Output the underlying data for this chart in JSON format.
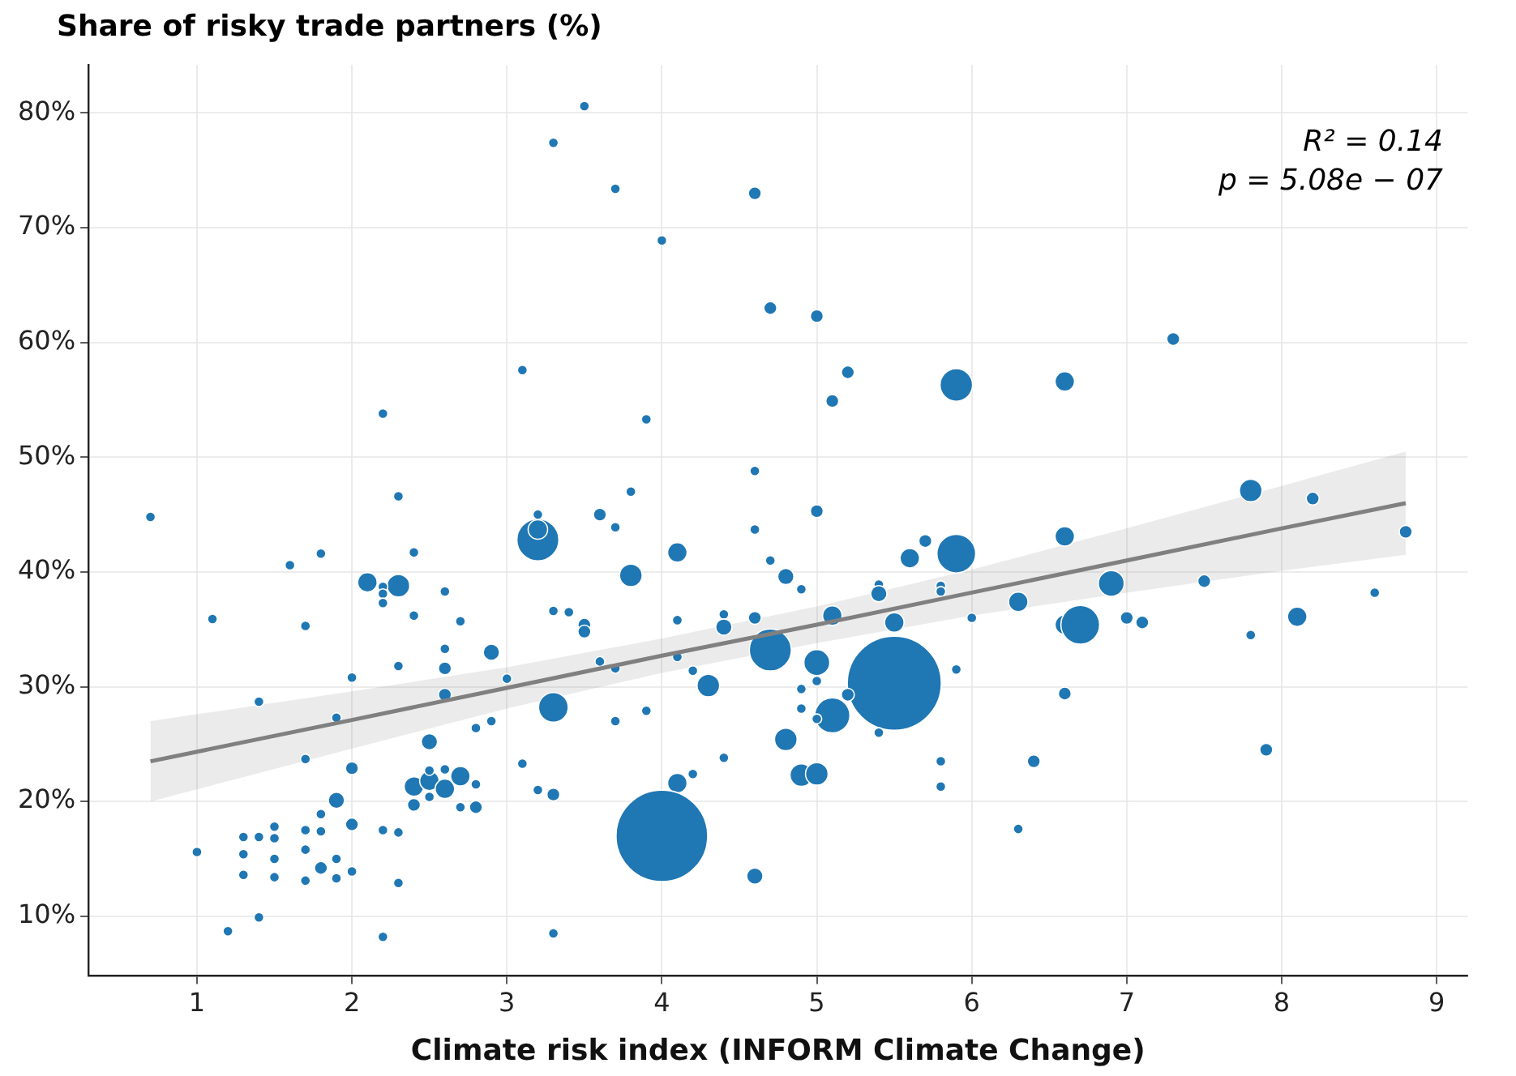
{
  "chart_data": {
    "type": "bubble",
    "ylabel": "Share of risky trade partners (%)",
    "xlabel": "Climate risk index (INFORM Climate Change)",
    "annotations": [
      "R² = 0.14",
      "p = 5.08e − 07"
    ],
    "xlim": [
      0.3,
      9.2
    ],
    "ylim": [
      4.8,
      84.2
    ],
    "xticks": [
      1,
      2,
      3,
      4,
      5,
      6,
      7,
      8,
      9
    ],
    "yticks": [
      {
        "value": 10,
        "label": "10%"
      },
      {
        "value": 20,
        "label": "20%"
      },
      {
        "value": 30,
        "label": "30%"
      },
      {
        "value": 40,
        "label": "40%"
      },
      {
        "value": 50,
        "label": "50%"
      },
      {
        "value": 60,
        "label": "60%"
      },
      {
        "value": 70,
        "label": "70%"
      },
      {
        "value": 80,
        "label": "80%"
      }
    ],
    "grid": true,
    "legend": false,
    "series": [
      {
        "color": "#1f77b4",
        "x": [
          0.7,
          3.2,
          3.2,
          3.2,
          1.6,
          1.8,
          2.4,
          2.1,
          2.3,
          2.2,
          2.2,
          2.2,
          2.6,
          2.4,
          2.7,
          1.1,
          1.7,
          3.3,
          2.6,
          2.9,
          2.3,
          2.6,
          2.0,
          3.0,
          3.3,
          1.4,
          1.9,
          2.6,
          2.8,
          2.9,
          2.5,
          1.7,
          2.0,
          3.1,
          2.4,
          2.5,
          2.6,
          2.7,
          2.5,
          2.6,
          2.8,
          2.5,
          2.4,
          2.7,
          2.8,
          3.2,
          3.3,
          1.9,
          1.8,
          2.0,
          1.5,
          1.4,
          1.3,
          1.7,
          1.8,
          2.2,
          2.3,
          1.5,
          1.0,
          1.3,
          1.5,
          1.7,
          1.9,
          1.8,
          2.0,
          1.3,
          1.5,
          1.7,
          1.9,
          2.3,
          1.4,
          1.2,
          2.2,
          3.3,
          2.3,
          3.3,
          3.1,
          2.2,
          3.5,
          3.7,
          4.6,
          4.0,
          4.7,
          5.0,
          5.2,
          5.9,
          5.1,
          3.9,
          4.6,
          3.8,
          5.0,
          3.6,
          3.7,
          4.6,
          4.1,
          3.8,
          4.7,
          4.8,
          4.9,
          5.7,
          5.6,
          5.9,
          5.4,
          5.4,
          5.8,
          5.8,
          6.0,
          5.5,
          5.1,
          4.6,
          4.4,
          4.4,
          4.1,
          3.4,
          3.5,
          3.5,
          4.1,
          3.6,
          3.7,
          4.2,
          4.7,
          5.0,
          5.0,
          4.9,
          4.9,
          4.3,
          5.5,
          5.1,
          5.2,
          5.0,
          3.7,
          3.9,
          5.4,
          4.8,
          4.4,
          4.2,
          4.1,
          4.9,
          5.0,
          5.8,
          5.8,
          5.9,
          4.0,
          4.6,
          6.6,
          6.3,
          6.9,
          6.6,
          6.7,
          7.0,
          7.1,
          7.5,
          7.8,
          8.1,
          8.6,
          8.8,
          6.6,
          6.4,
          6.3,
          7.9,
          6.6,
          7.3,
          7.8,
          8.2
        ],
        "values": [
          44.8,
          42.8,
          45.0,
          43.7,
          40.6,
          41.6,
          41.7,
          39.1,
          38.8,
          38.7,
          38.1,
          37.3,
          38.3,
          36.2,
          35.7,
          35.9,
          35.3,
          36.6,
          33.3,
          33.0,
          31.8,
          31.6,
          30.8,
          30.7,
          28.2,
          28.7,
          27.3,
          29.3,
          26.4,
          27.0,
          25.2,
          23.7,
          22.9,
          23.3,
          21.3,
          21.8,
          21.1,
          22.2,
          22.7,
          22.8,
          21.5,
          20.4,
          19.7,
          19.5,
          19.5,
          21.0,
          20.6,
          20.1,
          18.9,
          18.0,
          17.8,
          16.9,
          16.9,
          17.5,
          17.4,
          17.5,
          17.3,
          16.8,
          15.6,
          15.4,
          15.0,
          15.8,
          15.0,
          14.2,
          13.9,
          13.6,
          13.4,
          13.1,
          13.3,
          12.9,
          9.9,
          8.7,
          8.2,
          8.5,
          46.6,
          77.4,
          57.6,
          53.8,
          80.6,
          73.4,
          73.0,
          68.9,
          63.0,
          62.3,
          57.4,
          56.3,
          54.9,
          53.3,
          48.8,
          47.0,
          45.3,
          45.0,
          43.9,
          43.7,
          41.7,
          39.7,
          41.0,
          39.6,
          38.5,
          42.7,
          41.2,
          41.6,
          38.9,
          38.1,
          38.8,
          38.3,
          36.0,
          35.6,
          36.2,
          36.0,
          36.3,
          35.2,
          35.8,
          36.5,
          35.4,
          34.8,
          32.6,
          32.2,
          31.6,
          31.4,
          33.2,
          32.1,
          30.5,
          29.8,
          28.1,
          30.1,
          30.3,
          27.5,
          29.3,
          27.2,
          27.0,
          27.9,
          26.0,
          25.4,
          23.8,
          22.4,
          21.6,
          22.3,
          22.4,
          23.5,
          21.3,
          31.5,
          17.0,
          13.5,
          43.1,
          37.4,
          39.0,
          35.4,
          35.4,
          36.0,
          35.6,
          39.2,
          34.5,
          36.1,
          38.2,
          43.5,
          29.4,
          23.5,
          17.6,
          24.5,
          56.6,
          60.3,
          47.1,
          46.4
        ],
        "sizes": [
          0.011,
          0.2,
          0.011,
          0.043,
          0.011,
          0.011,
          0.011,
          0.043,
          0.058,
          0.011,
          0.011,
          0.011,
          0.011,
          0.011,
          0.011,
          0.011,
          0.011,
          0.011,
          0.011,
          0.03,
          0.011,
          0.019,
          0.011,
          0.011,
          0.1,
          0.011,
          0.011,
          0.019,
          0.011,
          0.011,
          0.03,
          0.011,
          0.019,
          0.011,
          0.043,
          0.043,
          0.043,
          0.043,
          0.011,
          0.011,
          0.011,
          0.011,
          0.019,
          0.011,
          0.019,
          0.011,
          0.019,
          0.03,
          0.011,
          0.019,
          0.011,
          0.011,
          0.011,
          0.011,
          0.011,
          0.011,
          0.011,
          0.011,
          0.011,
          0.011,
          0.011,
          0.011,
          0.011,
          0.019,
          0.011,
          0.011,
          0.011,
          0.011,
          0.011,
          0.011,
          0.011,
          0.011,
          0.011,
          0.011,
          0.011,
          0.011,
          0.011,
          0.011,
          0.011,
          0.011,
          0.019,
          0.011,
          0.019,
          0.019,
          0.019,
          0.12,
          0.019,
          0.011,
          0.011,
          0.011,
          0.019,
          0.019,
          0.011,
          0.011,
          0.043,
          0.058,
          0.011,
          0.03,
          0.011,
          0.019,
          0.043,
          0.17,
          0.011,
          0.03,
          0.011,
          0.011,
          0.011,
          0.043,
          0.043,
          0.019,
          0.011,
          0.03,
          0.011,
          0.011,
          0.019,
          0.019,
          0.011,
          0.011,
          0.011,
          0.011,
          0.2,
          0.076,
          0.011,
          0.011,
          0.011,
          0.058,
          1,
          0.14,
          0.019,
          0.011,
          0.011,
          0.011,
          0.011,
          0.058,
          0.011,
          0.011,
          0.043,
          0.058,
          0.058,
          0.011,
          0.011,
          0.011,
          0.95,
          0.03,
          0.043,
          0.043,
          0.076,
          0.043,
          0.17,
          0.019,
          0.019,
          0.019,
          0.011,
          0.043,
          0.011,
          0.019,
          0.019,
          0.019,
          0.011,
          0.019,
          0.043,
          0.019,
          0.058,
          0.019
        ]
      },
      {
        "type": "line",
        "color": "#808080",
        "x": [
          0.7,
          2,
          3,
          4,
          5,
          6,
          7,
          8,
          8.8
        ],
        "values": [
          23.5,
          27.1,
          29.9,
          32.7,
          35.4,
          38.2,
          41.0,
          43.8,
          46.0
        ],
        "lower": [
          20.0,
          24.6,
          28.1,
          31.2,
          33.8,
          36.2,
          38.2,
          40.1,
          41.5
        ],
        "upper": [
          27.0,
          29.6,
          31.7,
          34.2,
          37.0,
          40.2,
          43.8,
          47.5,
          50.5
        ]
      }
    ]
  }
}
